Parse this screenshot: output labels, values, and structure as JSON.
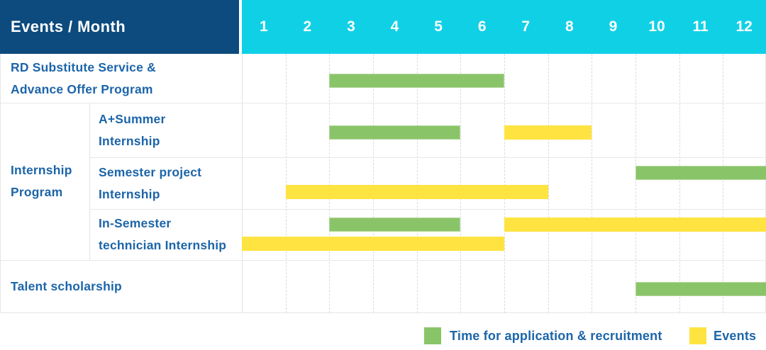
{
  "header": {
    "corner_label": "Events / Month",
    "months": [
      "1",
      "2",
      "3",
      "4",
      "5",
      "6",
      "7",
      "8",
      "9",
      "10",
      "11",
      "12"
    ]
  },
  "legend": {
    "items": [
      {
        "key": "application",
        "label": "Time for application & recruitment"
      },
      {
        "key": "event",
        "label": "Events"
      }
    ]
  },
  "colors": {
    "header_navy": "#0d4b7e",
    "header_cyan": "#10d0e6",
    "application_green": "#8ac468",
    "event_yellow": "#ffe340",
    "label_blue": "#1c65a9"
  },
  "chart_data": {
    "type": "bar",
    "subtype": "gantt-schedule",
    "title": "Events / Month",
    "xlabel": "Month",
    "x_ticks": [
      "1",
      "2",
      "3",
      "4",
      "5",
      "6",
      "7",
      "8",
      "9",
      "10",
      "11",
      "12"
    ],
    "x_range": [
      1,
      12
    ],
    "legend_entries": [
      "Time for application & recruitment",
      "Events"
    ],
    "rows": [
      {
        "group": "",
        "label": "RD Substitute Service & Advance Offer Program",
        "label_lines": [
          "RD Substitute Service &",
          "Advance Offer Program"
        ],
        "lines": [
          [
            {
              "kind": "application",
              "start_month": 3,
              "end_month": 6
            }
          ]
        ]
      },
      {
        "group": "Internship Program",
        "group_lines": [
          "Internship",
          "Program"
        ],
        "group_span": 3,
        "label": "A+Summer Internship",
        "label_lines": [
          "A+Summer",
          "Internship"
        ],
        "lines": [
          [
            {
              "kind": "application",
              "start_month": 3,
              "end_month": 5
            },
            {
              "kind": "event",
              "start_month": 7,
              "end_month": 8
            }
          ]
        ]
      },
      {
        "label": "Semester project Internship",
        "label_lines": [
          "Semester project",
          "Internship"
        ],
        "lines": [
          [
            {
              "kind": "application",
              "start_month": 10,
              "end_month": 12
            }
          ],
          [
            {
              "kind": "event",
              "start_month": 2,
              "end_month": 7
            }
          ]
        ]
      },
      {
        "label": "In-Semester technician Internship",
        "label_lines": [
          "In-Semester",
          "technician Internship"
        ],
        "lines": [
          [
            {
              "kind": "application",
              "start_month": 3,
              "end_month": 5
            },
            {
              "kind": "event",
              "start_month": 7,
              "end_month": 12
            }
          ],
          [
            {
              "kind": "event",
              "start_month": 1,
              "end_month": 6
            }
          ]
        ]
      },
      {
        "label": "Talent scholarship",
        "label_lines": [
          "Talent scholarship"
        ],
        "lines": [
          [
            {
              "kind": "application",
              "start_month": 10,
              "end_month": 12
            }
          ]
        ]
      }
    ]
  }
}
